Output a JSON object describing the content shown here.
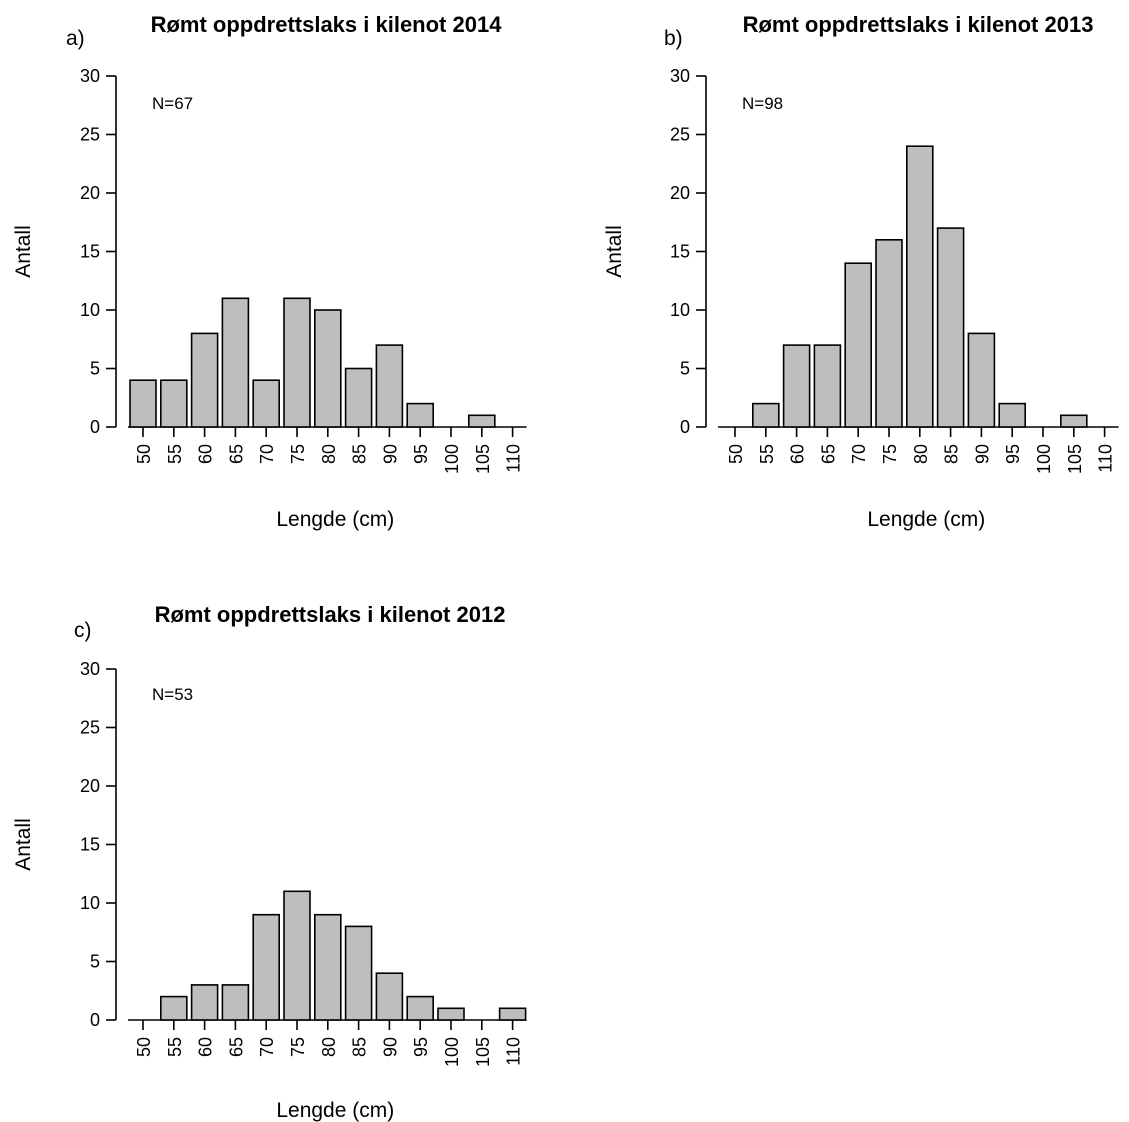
{
  "chart_data": [
    {
      "type": "bar",
      "panel": "a)",
      "title": "Rømt oppdrettslaks i kilenot 2014",
      "note": "N=67",
      "xlabel": "Lengde (cm)",
      "ylabel": "Antall",
      "categories": [
        "50",
        "55",
        "60",
        "65",
        "70",
        "75",
        "80",
        "85",
        "90",
        "95",
        "100",
        "105",
        "110"
      ],
      "values": [
        4,
        4,
        8,
        11,
        4,
        11,
        10,
        5,
        7,
        2,
        0,
        1,
        0
      ],
      "ylim": [
        0,
        30
      ],
      "yticks": [
        0,
        5,
        10,
        15,
        20,
        25,
        30
      ],
      "bar_color": "#bebebe",
      "grid": false,
      "legend": "none"
    },
    {
      "type": "bar",
      "panel": "b)",
      "title": "Rømt oppdrettslaks i kilenot 2013",
      "note": "N=98",
      "xlabel": "Lengde (cm)",
      "ylabel": "Antall",
      "categories": [
        "50",
        "55",
        "60",
        "65",
        "70",
        "75",
        "80",
        "85",
        "90",
        "95",
        "100",
        "105",
        "110"
      ],
      "values": [
        0,
        2,
        7,
        7,
        14,
        16,
        24,
        17,
        8,
        2,
        0,
        1,
        0
      ],
      "ylim": [
        0,
        30
      ],
      "yticks": [
        0,
        5,
        10,
        15,
        20,
        25,
        30
      ],
      "bar_color": "#bebebe",
      "grid": false,
      "legend": "none"
    },
    {
      "type": "bar",
      "panel": "c)",
      "title": "Rømt oppdrettslaks i kilenot 2012",
      "note": "N=53",
      "xlabel": "Lengde (cm)",
      "ylabel": "Antall",
      "categories": [
        "50",
        "55",
        "60",
        "65",
        "70",
        "75",
        "80",
        "85",
        "90",
        "95",
        "100",
        "105",
        "110"
      ],
      "values": [
        0,
        2,
        3,
        3,
        9,
        11,
        9,
        8,
        4,
        2,
        1,
        0,
        1
      ],
      "ylim": [
        0,
        30
      ],
      "yticks": [
        0,
        5,
        10,
        15,
        20,
        25,
        30
      ],
      "bar_color": "#bebebe",
      "grid": false,
      "legend": "none"
    }
  ]
}
